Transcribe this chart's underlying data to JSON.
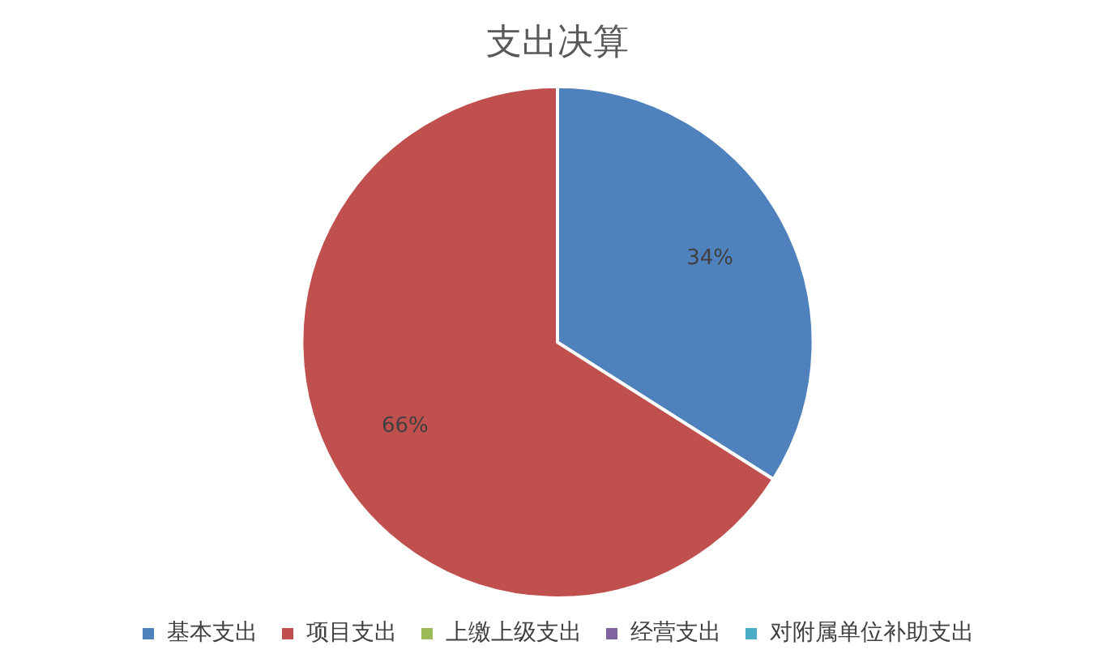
{
  "chart_data": {
    "type": "pie",
    "title": "支出决算",
    "categories": [
      "基本支出",
      "项目支出",
      "上缴上级支出",
      "经营支出",
      "对附属单位补助支出"
    ],
    "values": [
      34,
      66,
      0,
      0,
      0
    ],
    "colors": [
      "#4f81bd",
      "#c0504d",
      "#9bbb59",
      "#8064a2",
      "#4bacc6"
    ],
    "value_labels": [
      "34%",
      "66%",
      null,
      null,
      null
    ],
    "legend": "bottom"
  }
}
